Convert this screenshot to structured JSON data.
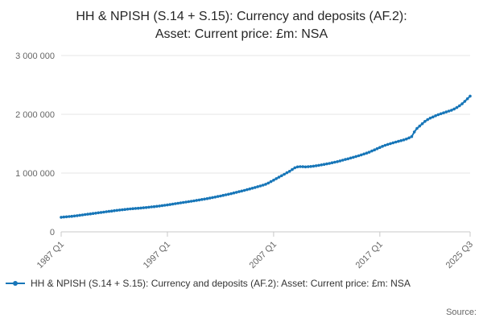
{
  "chart_data": {
    "type": "line",
    "title_lines": [
      "HH & NPISH (S.14 + S.15): Currency and deposits (AF.2):",
      "Asset: Current price: £m: NSA"
    ],
    "legend_label": "HH & NPISH (S.14 + S.15): Currency and deposits (AF.2): Asset: Current price: £m: NSA",
    "xlabel": "",
    "ylabel": "",
    "ylim": [
      0,
      3000000
    ],
    "grid": true,
    "legend_position": "bottom-left",
    "line_color": "#1776b8",
    "grid_color": "#e6e6e6",
    "axis_color": "#c8c8c8",
    "tick_label_color": "#666666",
    "frequency": "quarterly",
    "x_start": "1987 Q1",
    "x_end": "2025 Q3",
    "y_ticks": [
      {
        "value": 0,
        "label": "0"
      },
      {
        "value": 1000000,
        "label": "1 000 000"
      },
      {
        "value": 2000000,
        "label": "2 000 000"
      },
      {
        "value": 3000000,
        "label": "3 000 000"
      }
    ],
    "x_ticks": [
      {
        "index": 0,
        "label": "1987 Q1"
      },
      {
        "index": 40,
        "label": "1997 Q1"
      },
      {
        "index": 80,
        "label": "2007 Q1"
      },
      {
        "index": 120,
        "label": "2017 Q1"
      },
      {
        "index": 154,
        "label": "2025 Q3"
      }
    ],
    "values": [
      248000,
      252000,
      256000,
      260000,
      264000,
      270000,
      276000,
      282000,
      288000,
      294000,
      300000,
      306000,
      312000,
      318000,
      324000,
      330000,
      336000,
      342000,
      348000,
      354000,
      360000,
      366000,
      371000,
      376000,
      381000,
      386000,
      390000,
      394000,
      398000,
      402000,
      406000,
      410000,
      414000,
      419000,
      424000,
      429000,
      434000,
      440000,
      446000,
      452000,
      458000,
      465000,
      472000,
      479000,
      486000,
      493000,
      500000,
      507000,
      514000,
      521000,
      528000,
      535000,
      542000,
      550000,
      558000,
      566000,
      574000,
      583000,
      592000,
      601000,
      610000,
      620000,
      630000,
      640000,
      650000,
      661000,
      672000,
      683000,
      694000,
      706000,
      718000,
      730000,
      742000,
      755000,
      768000,
      781000,
      794000,
      810000,
      830000,
      855000,
      880000,
      905000,
      930000,
      955000,
      980000,
      1005000,
      1030000,
      1060000,
      1090000,
      1105000,
      1110000,
      1108000,
      1105000,
      1108000,
      1112000,
      1118000,
      1125000,
      1132000,
      1140000,
      1148000,
      1156000,
      1165000,
      1175000,
      1185000,
      1195000,
      1207000,
      1219000,
      1231000,
      1243000,
      1256000,
      1269000,
      1282000,
      1295000,
      1310000,
      1325000,
      1340000,
      1355000,
      1375000,
      1395000,
      1415000,
      1435000,
      1455000,
      1472000,
      1488000,
      1502000,
      1515000,
      1528000,
      1540000,
      1552000,
      1565000,
      1580000,
      1598000,
      1620000,
      1700000,
      1760000,
      1800000,
      1840000,
      1880000,
      1910000,
      1935000,
      1955000,
      1975000,
      1995000,
      2010000,
      2025000,
      2040000,
      2055000,
      2070000,
      2090000,
      2115000,
      2145000,
      2180000,
      2220000,
      2265000,
      2310000
    ]
  },
  "footer": {
    "source_label": "Source:"
  }
}
